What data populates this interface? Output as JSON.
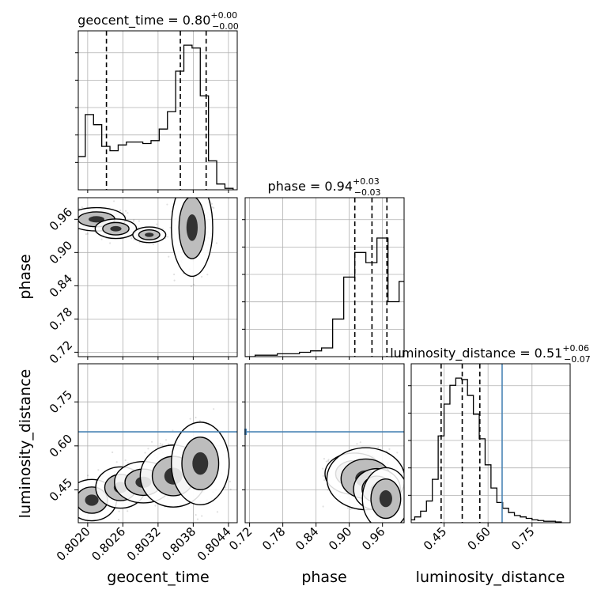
{
  "chart_data": {
    "type": "corner",
    "parameters": [
      "geocent_time",
      "phase",
      "luminosity_distance"
    ],
    "titles": [
      {
        "param": "geocent_time",
        "text": "geocent_time = 0.80",
        "sup": "+0.00",
        "sub": "−0.00"
      },
      {
        "param": "phase",
        "text": "phase = 0.94",
        "sup": "+0.03",
        "sub": "−0.03"
      },
      {
        "param": "luminosity_distance",
        "text": "luminosity_distance = 0.51",
        "sup": "+0.06",
        "sub": "−0.07"
      }
    ],
    "axis_labels": {
      "x": [
        "geocent_time",
        "phase",
        "luminosity_distance"
      ],
      "y": [
        "phase",
        "luminosity_distance"
      ]
    },
    "ranges": {
      "geocent_time": [
        0.80184,
        0.80455
      ],
      "phase": [
        0.712,
        0.999
      ],
      "luminosity_distance": [
        0.338,
        0.88
      ]
    },
    "ticks": {
      "geocent_time": [
        "0.8020",
        "0.8026",
        "0.8032",
        "0.8038",
        "0.8044"
      ],
      "phase": [
        "0.72",
        "0.78",
        "0.84",
        "0.90",
        "0.96"
      ],
      "luminosity_distance": [
        "0.45",
        "0.60",
        "0.75"
      ]
    },
    "quantiles": {
      "geocent_time": [
        0.80232,
        0.80358,
        0.80402
      ],
      "phase": [
        0.91,
        0.941,
        0.968
      ],
      "luminosity_distance": [
        0.44,
        0.512,
        0.572
      ]
    },
    "truth": {
      "luminosity_distance": 0.648
    },
    "hist_geocent_time": {
      "x": [
        0.80189,
        0.80203,
        0.80217,
        0.80231,
        0.80245,
        0.80259,
        0.80273,
        0.80287,
        0.80301,
        0.80315,
        0.80329,
        0.80343,
        0.80357,
        0.80371,
        0.80385,
        0.80399,
        0.80413,
        0.80427,
        0.80441
      ],
      "y": [
        0.23,
        0.52,
        0.45,
        0.3,
        0.27,
        0.31,
        0.33,
        0.33,
        0.32,
        0.34,
        0.42,
        0.54,
        0.82,
        1.0,
        0.98,
        0.65,
        0.2,
        0.04,
        0.01
      ]
    },
    "hist_phase": {
      "x": [
        0.72,
        0.74,
        0.76,
        0.78,
        0.8,
        0.82,
        0.84,
        0.86,
        0.88,
        0.9,
        0.92,
        0.94,
        0.96,
        0.98,
        1.0
      ],
      "y": [
        0.0,
        0.01,
        0.01,
        0.02,
        0.02,
        0.03,
        0.04,
        0.06,
        0.26,
        0.55,
        0.72,
        0.65,
        0.82,
        0.38,
        0.52
      ]
    },
    "hist_luminosity_distance": {
      "x": [
        0.34,
        0.36,
        0.38,
        0.4,
        0.42,
        0.44,
        0.46,
        0.48,
        0.5,
        0.52,
        0.54,
        0.56,
        0.58,
        0.6,
        0.62,
        0.64,
        0.66,
        0.68,
        0.7,
        0.72,
        0.74,
        0.76,
        0.78,
        0.8,
        0.82,
        0.84
      ],
      "y": [
        0.02,
        0.04,
        0.08,
        0.15,
        0.3,
        0.6,
        0.82,
        0.95,
        1.0,
        0.99,
        0.88,
        0.75,
        0.58,
        0.4,
        0.24,
        0.14,
        0.1,
        0.07,
        0.05,
        0.04,
        0.03,
        0.02,
        0.015,
        0.01,
        0.01,
        0.005
      ]
    },
    "contour_gt_phase": {
      "modes": [
        {
          "x": 0.80215,
          "y": 0.96,
          "w": 0.00014,
          "h": 0.006
        },
        {
          "x": 0.80248,
          "y": 0.943,
          "w": 0.0001,
          "h": 0.005
        },
        {
          "x": 0.80305,
          "y": 0.932,
          "w": 8e-05,
          "h": 0.004
        },
        {
          "x": 0.80378,
          "y": 0.945,
          "w": 0.0001,
          "h": 0.025
        }
      ]
    },
    "contour_gt_ld": {
      "modes": [
        {
          "x": 0.80207,
          "y": 0.415,
          "w": 0.00012,
          "h": 0.02
        },
        {
          "x": 0.80256,
          "y": 0.458,
          "w": 0.00012,
          "h": 0.02
        },
        {
          "x": 0.80295,
          "y": 0.476,
          "w": 0.00014,
          "h": 0.02
        },
        {
          "x": 0.80346,
          "y": 0.497,
          "w": 0.00016,
          "h": 0.03
        },
        {
          "x": 0.80392,
          "y": 0.54,
          "w": 0.00014,
          "h": 0.04
        }
      ]
    },
    "contour_phase_ld": {
      "modes": [
        {
          "x": 0.909,
          "y": 0.505,
          "w": 0.015,
          "h": 0.02
        },
        {
          "x": 0.93,
          "y": 0.488,
          "w": 0.02,
          "h": 0.03
        },
        {
          "x": 0.95,
          "y": 0.452,
          "w": 0.012,
          "h": 0.02
        },
        {
          "x": 0.966,
          "y": 0.42,
          "w": 0.012,
          "h": 0.03
        }
      ]
    },
    "grid": true
  }
}
